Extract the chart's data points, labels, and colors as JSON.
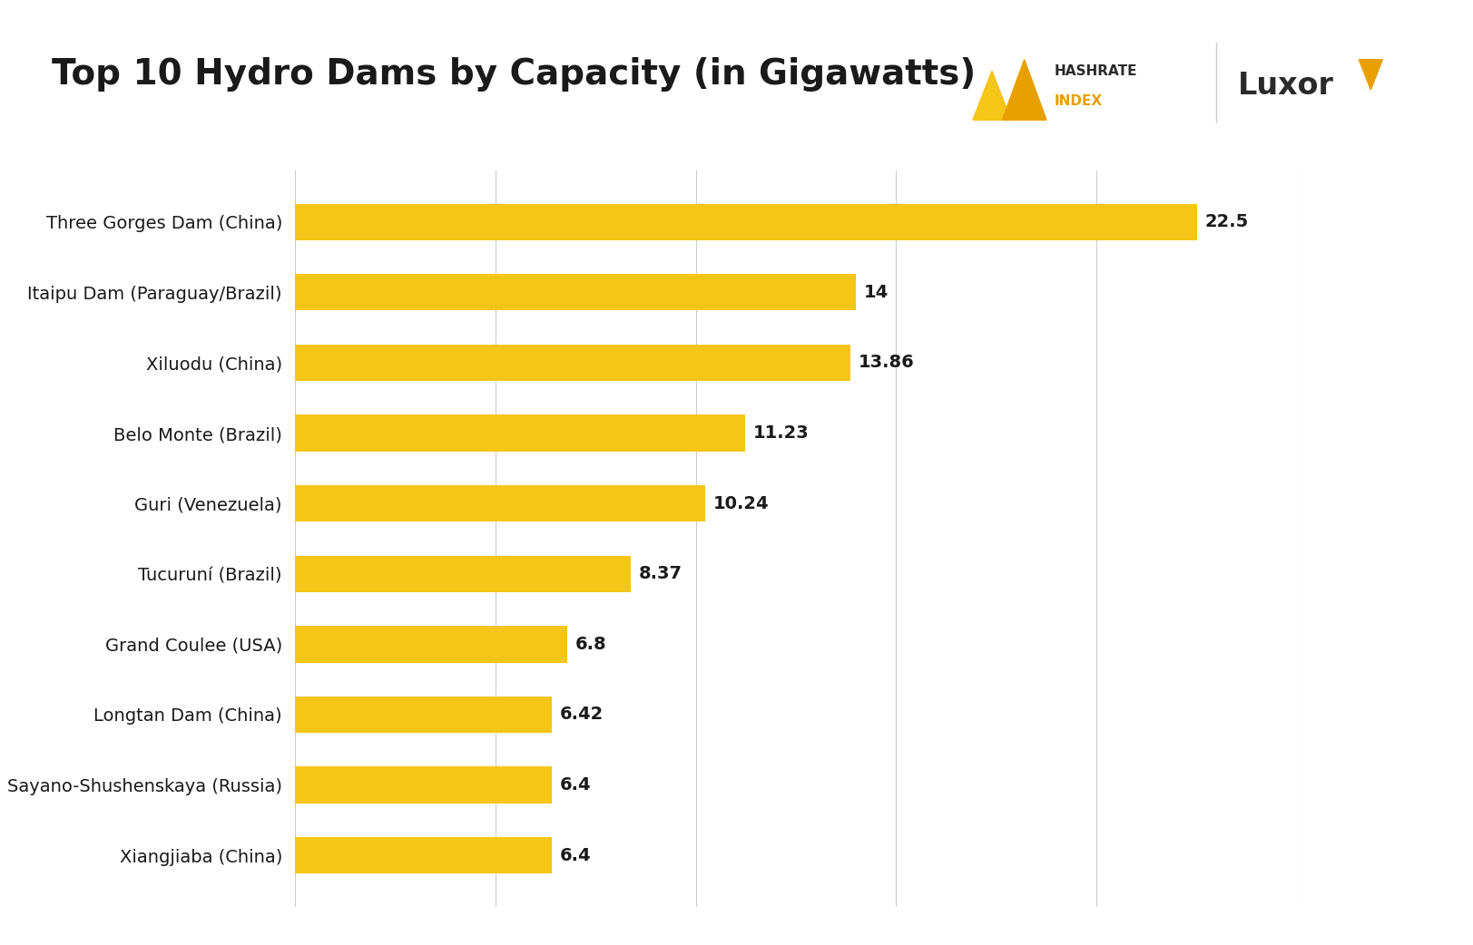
{
  "title": "Top 10 Hydro Dams by Capacity (in Gigawatts)",
  "categories": [
    "Xiangjiaba (China)",
    "Sayano-Shushenskaya (Russia)",
    "Longtan Dam (China)",
    "Grand Coulee (USA)",
    "Tucuruní (Brazil)",
    "Guri (Venezuela)",
    "Belo Monte (Brazil)",
    "Xiluodu (China)",
    "Itaipu Dam (Paraguay/Brazil)",
    "Three Gorges Dam (China)"
  ],
  "values": [
    6.4,
    6.4,
    6.42,
    6.8,
    8.37,
    10.24,
    11.23,
    13.86,
    14,
    22.5
  ],
  "bar_color": "#F5C518",
  "background_color": "#FFFFFF",
  "label_color": "#1a1a1a",
  "value_label_color": "#1a1a1a",
  "title_fontsize": 28,
  "label_fontsize": 14,
  "value_fontsize": 14,
  "xlim": [
    0,
    25
  ],
  "grid_color": "#CCCCCC",
  "bar_height": 0.52,
  "hashrate_color": "#2a2a2a",
  "hashrate_index_color": "#E8A000",
  "luxor_color": "#2a2a2a",
  "tri_gold": "#E8A000",
  "tri_light": "#F5C518"
}
